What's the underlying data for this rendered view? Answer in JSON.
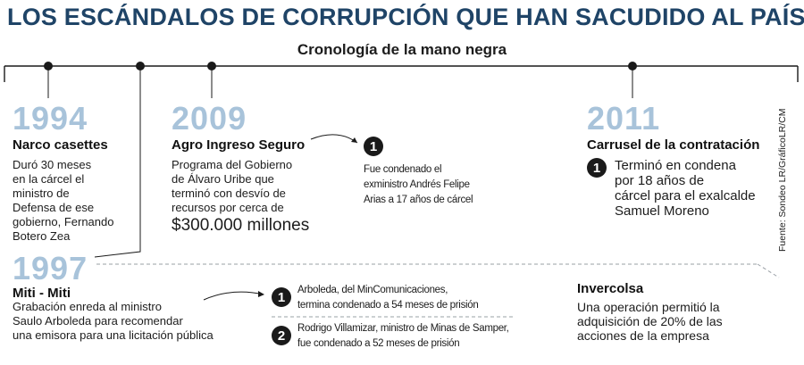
{
  "header": {
    "title": "LOS ESCÁNDALOS DE CORRUPCIÓN QUE HAN SACUDIDO AL PAÍS",
    "subtitle": "Cronología de la mano negra"
  },
  "colors": {
    "title": "#1f4467",
    "year": "#a8c3da",
    "line": "#1a1a1a",
    "dashed": "#9aa0a6"
  },
  "events": {
    "e1994": {
      "year": "1994",
      "title": "Narco casettes",
      "desc": [
        "Duró 30 meses",
        "en la cárcel el",
        "ministro de",
        "Defensa de ese",
        "gobierno, Fernando",
        "Botero Zea"
      ]
    },
    "e2009": {
      "year": "2009",
      "title": "Agro Ingreso Seguro",
      "desc": [
        "Programa del Gobierno",
        "de Álvaro Uribe que",
        "terminó con desvío de",
        "recursos por cerca de"
      ],
      "amount": "$300.000 millones",
      "note_badge": "1",
      "note": [
        "Fue condenado el",
        "exministro Andrés Felipe",
        "Arias a 17 años de cárcel"
      ]
    },
    "e2011": {
      "year": "2011",
      "title": "Carrusel de la contratación",
      "badge": "1",
      "desc": [
        "Terminó en condena",
        "por 18 años de",
        "cárcel para el exalcalde",
        "Samuel Moreno"
      ]
    },
    "e1997": {
      "year": "1997",
      "title": "Miti - Miti",
      "desc": [
        "Grabación enreda al ministro",
        "Saulo Arboleda para recomendar",
        "una emisora para una licitación pública"
      ],
      "notes": [
        {
          "badge": "1",
          "lines": [
            "Arboleda, del MinComunicaciones,",
            "termina condenado a 54 meses de prisión"
          ]
        },
        {
          "badge": "2",
          "lines": [
            "Rodrigo Villamizar, ministro de Minas de Samper,",
            "fue condenado a 52 meses de prisión"
          ]
        }
      ]
    },
    "inver": {
      "title": "Invercolsa",
      "desc": [
        "Una operación permitió la",
        "adquisición de 20% de las",
        "acciones de la empresa"
      ]
    }
  },
  "source": "Fuente: Sondeo LR/GráficoLR/CM"
}
